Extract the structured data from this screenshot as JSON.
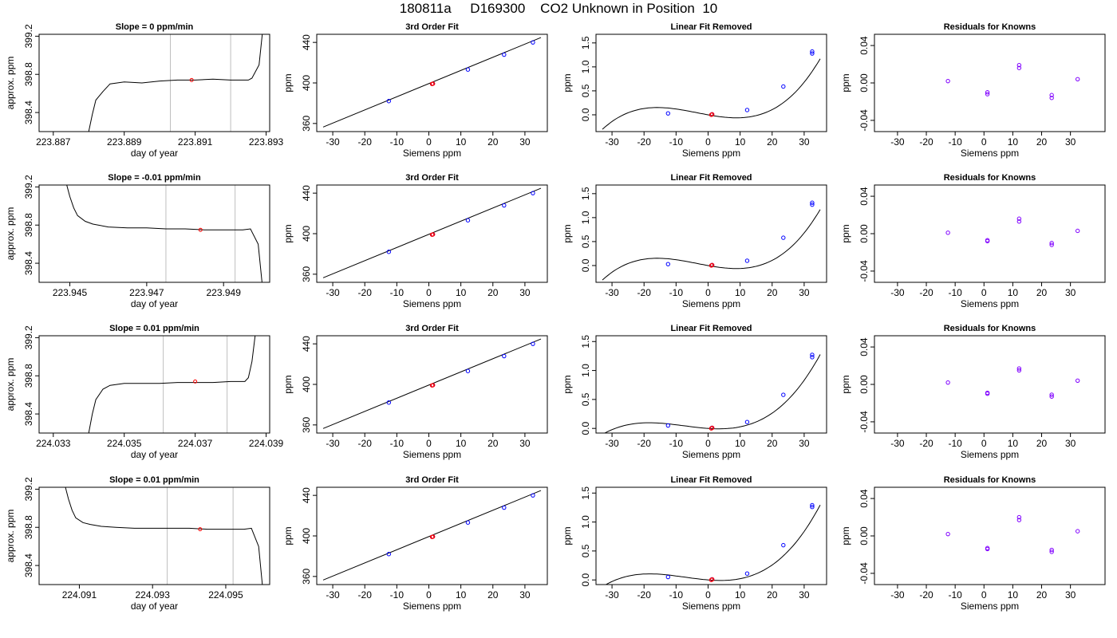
{
  "title": "180811a     D169300    CO2 Unknown in Position  10",
  "colors": {
    "line": "#000000",
    "vline": "#bebebe",
    "known": "#0000ff",
    "unknown": "#ff0000",
    "residual": "#8000ff"
  },
  "chart_data": [
    {
      "type": "line",
      "title": "Slope =  0  ppm/min",
      "xlabel": "day of year",
      "ylabel": "approx. ppm",
      "xlim": [
        223.8866,
        223.8931
      ],
      "ylim": [
        398.2,
        399.22
      ],
      "xticks": [
        223.887,
        223.889,
        223.891,
        223.893
      ],
      "xtick_labels": [
        "223.887",
        "223.889",
        "223.891",
        "223.893"
      ],
      "yticks": [
        398.4,
        398.8,
        399.2
      ],
      "ytick_labels": [
        "398.4",
        "398.8",
        "399.2"
      ],
      "vlines": [
        223.8903,
        223.892
      ],
      "red_point": [
        223.8909,
        398.74
      ],
      "series": [
        {
          "x": [
            223.888,
            223.8881,
            223.8882,
            223.8884,
            223.8886,
            223.8888,
            223.889,
            223.8895,
            223.89,
            223.8905,
            223.891,
            223.8915,
            223.892,
            223.8925,
            223.8926,
            223.8928,
            223.8929
          ],
          "y": [
            398.2,
            398.38,
            398.53,
            398.62,
            398.7,
            398.71,
            398.72,
            398.71,
            398.73,
            398.74,
            398.74,
            398.75,
            398.74,
            398.74,
            398.76,
            398.9,
            399.25
          ]
        }
      ]
    },
    {
      "type": "scatter",
      "title": "3rd Order Fit",
      "xlabel": "Siemens ppm",
      "ylabel": "ppm",
      "xlim": [
        -35,
        37
      ],
      "ylim": [
        352,
        448
      ],
      "xticks": [
        -30,
        -20,
        -10,
        0,
        10,
        20,
        30
      ],
      "xtick_labels": [
        "-30",
        "-20",
        "-10",
        "0",
        "10",
        "20",
        "30"
      ],
      "yticks": [
        360,
        400,
        440
      ],
      "ytick_labels": [
        "360",
        "400",
        "440"
      ],
      "curve_x": [
        -33,
        35
      ],
      "curve_y": [
        356.5,
        444.8
      ],
      "knowns": {
        "x": [
          -12.5,
          1.2,
          12.2,
          23.5,
          32.5
        ],
        "y": [
          382.1,
          399.2,
          413.2,
          427.9,
          440.0
        ]
      },
      "unknowns": {
        "x": [
          1.0,
          1.3
        ],
        "y": [
          399.0,
          399.3
        ]
      }
    },
    {
      "type": "scatter",
      "title": "Linear Fit Removed",
      "xlabel": "Siemens ppm",
      "ylabel": "ppm",
      "xlim": [
        -35,
        37
      ],
      "ylim": [
        -0.35,
        1.68
      ],
      "xticks": [
        -30,
        -20,
        -10,
        0,
        10,
        20,
        30
      ],
      "xtick_labels": [
        "-30",
        "-20",
        "-10",
        "0",
        "10",
        "20",
        "30"
      ],
      "yticks": [
        0,
        0.5,
        1.0,
        1.5
      ],
      "ytick_labels": [
        "0.0",
        "0.5",
        "1.0",
        "1.5"
      ],
      "poly": [
        0.0,
        -0.012,
        0.0003,
        2.85e-05
      ],
      "knowns": {
        "x": [
          -12.5,
          1.2,
          12.2,
          23.5,
          32.5,
          32.5
        ],
        "y": [
          0.03,
          0.01,
          0.1,
          0.59,
          1.28,
          1.32
        ]
      },
      "unknowns": {
        "x": [
          1.0,
          1.3
        ],
        "y": [
          0.0,
          0.01
        ]
      }
    },
    {
      "type": "scatter",
      "title": "Residuals for Knowns",
      "xlabel": "Siemens ppm",
      "ylabel": "ppm",
      "xlim": [
        -38,
        42
      ],
      "ylim": [
        -0.052,
        0.052
      ],
      "xticks": [
        -30,
        -20,
        -10,
        0,
        10,
        20,
        30
      ],
      "xtick_labels": [
        "-30",
        "-20",
        "-10",
        "0",
        "10",
        "20",
        "30"
      ],
      "yticks": [
        -0.04,
        0.0,
        0.04
      ],
      "ytick_labels": [
        "-0.04",
        "0.00",
        "0.04"
      ],
      "points": {
        "x": [
          -12.5,
          1.2,
          1.2,
          12.2,
          12.2,
          23.5,
          23.5,
          32.5
        ],
        "y": [
          0.002,
          -0.01,
          -0.012,
          0.016,
          0.019,
          -0.013,
          -0.016,
          0.004
        ]
      }
    },
    {
      "type": "line",
      "title": "Slope =  -0.01  ppm/min",
      "xlabel": "day of year",
      "ylabel": "approx. ppm",
      "xlim": [
        223.9442,
        223.9502
      ],
      "ylim": [
        398.2,
        399.22
      ],
      "xticks": [
        223.945,
        223.947,
        223.949
      ],
      "xtick_labels": [
        "223.945",
        "223.947",
        "223.949"
      ],
      "yticks": [
        398.4,
        398.8,
        399.2
      ],
      "ytick_labels": [
        "398.4",
        "398.8",
        "399.2"
      ],
      "vlines": [
        223.9475,
        223.9493
      ],
      "red_point": [
        223.9484,
        398.75
      ],
      "series": [
        {
          "x": [
            223.9449,
            223.945,
            223.9451,
            223.9452,
            223.9454,
            223.9456,
            223.946,
            223.9465,
            223.947,
            223.9475,
            223.948,
            223.9485,
            223.949,
            223.9495,
            223.9497,
            223.9499,
            223.95
          ],
          "y": [
            399.25,
            399.1,
            398.98,
            398.9,
            398.84,
            398.81,
            398.78,
            398.77,
            398.77,
            398.76,
            398.76,
            398.75,
            398.75,
            398.75,
            398.76,
            398.6,
            398.2
          ]
        }
      ]
    },
    {
      "type": "scatter",
      "title": "3rd Order Fit",
      "xlabel": "Siemens ppm",
      "ylabel": "ppm",
      "xlim": [
        -35,
        37
      ],
      "ylim": [
        352,
        448
      ],
      "xticks": [
        -30,
        -20,
        -10,
        0,
        10,
        20,
        30
      ],
      "xtick_labels": [
        "-30",
        "-20",
        "-10",
        "0",
        "10",
        "20",
        "30"
      ],
      "yticks": [
        360,
        400,
        440
      ],
      "ytick_labels": [
        "360",
        "400",
        "440"
      ],
      "curve_x": [
        -33,
        35
      ],
      "curve_y": [
        356.5,
        444.8
      ],
      "knowns": {
        "x": [
          -12.5,
          1.2,
          12.2,
          23.5,
          32.5
        ],
        "y": [
          382.1,
          399.2,
          413.2,
          427.9,
          440.0
        ]
      },
      "unknowns": {
        "x": [
          1.0,
          1.3
        ],
        "y": [
          399.0,
          399.3
        ]
      }
    },
    {
      "type": "scatter",
      "title": "Linear Fit Removed",
      "xlabel": "Siemens ppm",
      "ylabel": "ppm",
      "xlim": [
        -35,
        37
      ],
      "ylim": [
        -0.35,
        1.68
      ],
      "xticks": [
        -30,
        -20,
        -10,
        0,
        10,
        20,
        30
      ],
      "xtick_labels": [
        "-30",
        "-20",
        "-10",
        "0",
        "10",
        "20",
        "30"
      ],
      "yticks": [
        0,
        0.5,
        1.0,
        1.5
      ],
      "ytick_labels": [
        "0.0",
        "0.5",
        "1.0",
        "1.5"
      ],
      "poly": [
        0.0,
        -0.012,
        0.0003,
        2.85e-05
      ],
      "knowns": {
        "x": [
          -12.5,
          1.2,
          12.2,
          23.5,
          32.5,
          32.5
        ],
        "y": [
          0.03,
          0.01,
          0.1,
          0.58,
          1.27,
          1.31
        ]
      },
      "unknowns": {
        "x": [
          1.0,
          1.3
        ],
        "y": [
          0.0,
          0.01
        ]
      }
    },
    {
      "type": "scatter",
      "title": "Residuals for Knowns",
      "xlabel": "Siemens ppm",
      "ylabel": "ppm",
      "xlim": [
        -38,
        42
      ],
      "ylim": [
        -0.052,
        0.052
      ],
      "xticks": [
        -30,
        -20,
        -10,
        0,
        10,
        20,
        30
      ],
      "xtick_labels": [
        "-30",
        "-20",
        "-10",
        "0",
        "10",
        "20",
        "30"
      ],
      "yticks": [
        -0.04,
        0.0,
        0.04
      ],
      "ytick_labels": [
        "-0.04",
        "0.00",
        "0.04"
      ],
      "points": {
        "x": [
          -12.5,
          1.2,
          1.2,
          12.2,
          12.2,
          23.5,
          23.5,
          32.5
        ],
        "y": [
          0.001,
          -0.007,
          -0.008,
          0.013,
          0.016,
          -0.01,
          -0.012,
          0.003
        ]
      }
    },
    {
      "type": "line",
      "title": "Slope =  0.01  ppm/min",
      "xlabel": "day of year",
      "ylabel": "approx. ppm",
      "xlim": [
        224.0326,
        224.0391
      ],
      "ylim": [
        398.2,
        399.22
      ],
      "xticks": [
        224.033,
        224.035,
        224.037,
        224.039
      ],
      "xtick_labels": [
        "224.033",
        "224.035",
        "224.037",
        "224.039"
      ],
      "yticks": [
        398.4,
        398.8,
        399.2
      ],
      "ytick_labels": [
        "398.4",
        "398.8",
        "399.2"
      ],
      "vlines": [
        224.0361,
        224.0379
      ],
      "red_point": [
        224.037,
        398.74
      ],
      "series": [
        {
          "x": [
            224.034,
            224.0341,
            224.0342,
            224.0344,
            224.0346,
            224.0348,
            224.035,
            224.0355,
            224.036,
            224.0365,
            224.037,
            224.0375,
            224.038,
            224.0384,
            224.0385,
            224.0386,
            224.0387
          ],
          "y": [
            398.2,
            398.4,
            398.55,
            398.66,
            398.7,
            398.71,
            398.72,
            398.72,
            398.72,
            398.73,
            398.73,
            398.73,
            398.74,
            398.74,
            398.78,
            398.95,
            399.25
          ]
        }
      ]
    },
    {
      "type": "scatter",
      "title": "3rd Order Fit",
      "xlabel": "Siemens ppm",
      "ylabel": "ppm",
      "xlim": [
        -35,
        37
      ],
      "ylim": [
        352,
        448
      ],
      "xticks": [
        -30,
        -20,
        -10,
        0,
        10,
        20,
        30
      ],
      "xtick_labels": [
        "-30",
        "-20",
        "-10",
        "0",
        "10",
        "20",
        "30"
      ],
      "yticks": [
        360,
        400,
        440
      ],
      "ytick_labels": [
        "360",
        "400",
        "440"
      ],
      "curve_x": [
        -33,
        35
      ],
      "curve_y": [
        356.5,
        444.8
      ],
      "knowns": {
        "x": [
          -12.5,
          1.2,
          12.2,
          23.5,
          32.5
        ],
        "y": [
          382.1,
          399.2,
          413.2,
          427.9,
          440.0
        ]
      },
      "unknowns": {
        "x": [
          1.0,
          1.3
        ],
        "y": [
          399.0,
          399.3
        ]
      }
    },
    {
      "type": "scatter",
      "title": "Linear Fit Removed",
      "xlabel": "Siemens ppm",
      "ylabel": "ppm",
      "xlim": [
        -35,
        37
      ],
      "ylim": [
        -0.08,
        1.6
      ],
      "xticks": [
        -30,
        -20,
        -10,
        0,
        10,
        20,
        30
      ],
      "xtick_labels": [
        "-30",
        "-20",
        "-10",
        "0",
        "10",
        "20",
        "30"
      ],
      "yticks": [
        0,
        0.5,
        1.0,
        1.5
      ],
      "ytick_labels": [
        "0.0",
        "0.5",
        "1.0",
        "1.5"
      ],
      "poly": [
        0.0,
        -0.0038,
        0.00045,
        2e-05
      ],
      "knowns": {
        "x": [
          -12.5,
          1.2,
          12.2,
          23.5,
          32.5,
          32.5
        ],
        "y": [
          0.05,
          0.01,
          0.11,
          0.58,
          1.23,
          1.27
        ]
      },
      "unknowns": {
        "x": [
          1.0,
          1.3
        ],
        "y": [
          0.0,
          0.01
        ]
      }
    },
    {
      "type": "scatter",
      "title": "Residuals for Knowns",
      "xlabel": "Siemens ppm",
      "ylabel": "ppm",
      "xlim": [
        -38,
        42
      ],
      "ylim": [
        -0.052,
        0.052
      ],
      "xticks": [
        -30,
        -20,
        -10,
        0,
        10,
        20,
        30
      ],
      "xtick_labels": [
        "-30",
        "-20",
        "-10",
        "0",
        "10",
        "20",
        "30"
      ],
      "yticks": [
        -0.04,
        0.0,
        0.04
      ],
      "ytick_labels": [
        "-0.04",
        "0.00",
        "0.04"
      ],
      "points": {
        "x": [
          -12.5,
          1.2,
          1.2,
          12.2,
          12.2,
          23.5,
          23.5,
          32.5
        ],
        "y": [
          0.002,
          -0.009,
          -0.01,
          0.015,
          0.017,
          -0.011,
          -0.013,
          0.004
        ]
      }
    },
    {
      "type": "line",
      "title": "Slope =  0.01  ppm/min",
      "xlabel": "day of year",
      "ylabel": "approx. ppm",
      "xlim": [
        224.0899,
        224.0962
      ],
      "ylim": [
        398.2,
        399.22
      ],
      "xticks": [
        224.091,
        224.093,
        224.095
      ],
      "xtick_labels": [
        "224.091",
        "224.093",
        "224.095"
      ],
      "yticks": [
        398.4,
        398.8,
        399.2
      ],
      "ytick_labels": [
        "398.4",
        "398.8",
        "399.2"
      ],
      "vlines": [
        224.0934,
        224.0952
      ],
      "red_point": [
        224.0943,
        398.78
      ],
      "series": [
        {
          "x": [
            224.0906,
            224.0907,
            224.0908,
            224.0909,
            224.0911,
            224.0913,
            224.0916,
            224.092,
            224.0925,
            224.093,
            224.0935,
            224.094,
            224.0945,
            224.095,
            224.0955,
            224.0957,
            224.0959,
            224.096
          ],
          "y": [
            399.25,
            399.1,
            398.98,
            398.9,
            398.85,
            398.83,
            398.81,
            398.8,
            398.79,
            398.79,
            398.79,
            398.79,
            398.78,
            398.78,
            398.78,
            398.79,
            398.6,
            398.2
          ]
        }
      ]
    },
    {
      "type": "scatter",
      "title": "3rd Order Fit",
      "xlabel": "Siemens ppm",
      "ylabel": "ppm",
      "xlim": [
        -35,
        37
      ],
      "ylim": [
        352,
        448
      ],
      "xticks": [
        -30,
        -20,
        -10,
        0,
        10,
        20,
        30
      ],
      "xtick_labels": [
        "-30",
        "-20",
        "-10",
        "0",
        "10",
        "20",
        "30"
      ],
      "yticks": [
        360,
        400,
        440
      ],
      "ytick_labels": [
        "360",
        "400",
        "440"
      ],
      "curve_x": [
        -33,
        35
      ],
      "curve_y": [
        356.5,
        444.8
      ],
      "knowns": {
        "x": [
          -12.5,
          1.2,
          12.2,
          23.5,
          32.5
        ],
        "y": [
          382.1,
          399.2,
          413.2,
          427.9,
          440.0
        ]
      },
      "unknowns": {
        "x": [
          1.0,
          1.3
        ],
        "y": [
          399.0,
          399.3
        ]
      }
    },
    {
      "type": "scatter",
      "title": "Linear Fit Removed",
      "xlabel": "Siemens ppm",
      "ylabel": "ppm",
      "xlim": [
        -35,
        37
      ],
      "ylim": [
        -0.08,
        1.6
      ],
      "xticks": [
        -30,
        -20,
        -10,
        0,
        10,
        20,
        30
      ],
      "xtick_labels": [
        "-30",
        "-20",
        "-10",
        "0",
        "10",
        "20",
        "30"
      ],
      "yticks": [
        0,
        0.5,
        1.0,
        1.5
      ],
      "ytick_labels": [
        "0.0",
        "0.5",
        "1.0",
        "1.5"
      ],
      "poly": [
        0.0,
        -0.0045,
        0.00045,
        2.1e-05
      ],
      "knowns": {
        "x": [
          -12.5,
          1.2,
          12.2,
          23.5,
          32.5,
          32.5
        ],
        "y": [
          0.05,
          0.01,
          0.11,
          0.6,
          1.26,
          1.29
        ]
      },
      "unknowns": {
        "x": [
          1.0,
          1.3
        ],
        "y": [
          0.0,
          0.01
        ]
      }
    },
    {
      "type": "scatter",
      "title": "Residuals for Knowns",
      "xlabel": "Siemens ppm",
      "ylabel": "ppm",
      "xlim": [
        -38,
        42
      ],
      "ylim": [
        -0.052,
        0.052
      ],
      "xticks": [
        -30,
        -20,
        -10,
        0,
        10,
        20,
        30
      ],
      "xtick_labels": [
        "-30",
        "-20",
        "-10",
        "0",
        "10",
        "20",
        "30"
      ],
      "yticks": [
        -0.04,
        0.0,
        0.04
      ],
      "ytick_labels": [
        "-0.04",
        "0.00",
        "0.04"
      ],
      "points": {
        "x": [
          -12.5,
          1.2,
          1.2,
          12.2,
          12.2,
          23.5,
          23.5,
          32.5
        ],
        "y": [
          0.002,
          -0.013,
          -0.014,
          0.017,
          0.02,
          -0.015,
          -0.017,
          0.005
        ]
      }
    }
  ]
}
